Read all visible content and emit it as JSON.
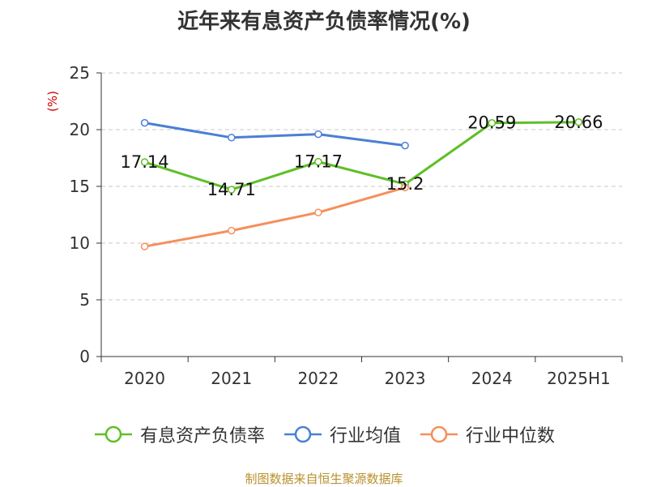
{
  "chart_data": {
    "type": "line",
    "title": "近年来有息资产负债率情况(%)",
    "ylabel": "(%)",
    "xlabel": "",
    "categories": [
      "2020",
      "2021",
      "2022",
      "2023",
      "2024",
      "2025H1"
    ],
    "ylim": [
      0,
      25
    ],
    "yticks": [
      0,
      5,
      10,
      15,
      20,
      25
    ],
    "grid": true,
    "legend_position": "bottom",
    "series": [
      {
        "name": "有息资产负债率",
        "color": "#5ebf27",
        "values": [
          17.14,
          14.71,
          17.17,
          15.2,
          20.59,
          20.66
        ],
        "labels": [
          "17.14",
          "14.71",
          "17.17",
          "15.2",
          "20.59",
          "20.66"
        ]
      },
      {
        "name": "行业均值",
        "color": "#4a7fd6",
        "values": [
          20.6,
          19.3,
          19.6,
          18.6,
          null,
          null
        ]
      },
      {
        "name": "行业中位数",
        "color": "#f58f5b",
        "values": [
          9.7,
          11.1,
          12.7,
          14.9,
          null,
          null
        ]
      }
    ]
  },
  "source_note": "制图数据来自恒生聚源数据库"
}
